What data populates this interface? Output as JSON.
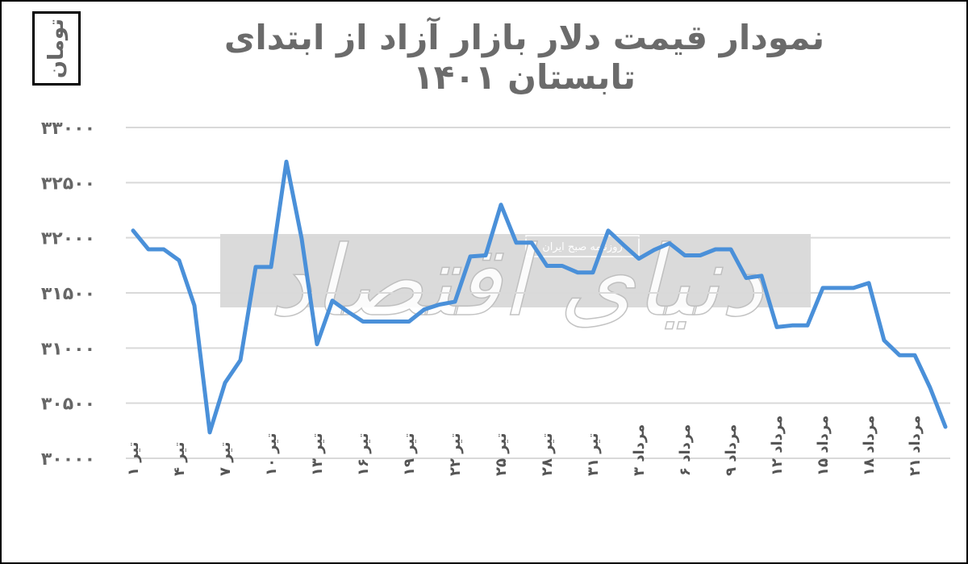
{
  "chart_data": {
    "type": "line",
    "title": "نمودار قیمت دلار بازار آزاد از ابتدای تابستان ۱۴۰۱",
    "unit_label": "تومان",
    "xlabel": "",
    "ylabel": "تومان",
    "ylim": [
      30000,
      33000
    ],
    "yticks": [
      30000,
      30500,
      31000,
      31500,
      32000,
      32500,
      33000
    ],
    "ytick_labels": [
      "۳۰۰۰۰",
      "۳۰۵۰۰",
      "۳۱۰۰۰",
      "۳۱۵۰۰",
      "۳۲۰۰۰",
      "۳۲۵۰۰",
      "۳۳۰۰۰"
    ],
    "grid": true,
    "legend": "none",
    "line_color": "#4a90d9",
    "xtick_labels": [
      "تیر ۱",
      "تیر ۴",
      "تیر ۷",
      "تیر ۱۰",
      "تیر ۱۳",
      "تیر ۱۶",
      "تیر ۱۹",
      "تیر ۲۲",
      "تیر ۲۵",
      "تیر ۲۸",
      "تیر ۳۱",
      "مرداد ۳",
      "مرداد ۶",
      "مرداد ۹",
      "مرداد ۱۲",
      "مرداد ۱۵",
      "مرداد ۱۸",
      "مرداد ۲۱"
    ],
    "xtick_every": 3,
    "series": [
      {
        "name": "قیمت دلار بازار آزاد",
        "values": [
          32065,
          31895,
          31895,
          31795,
          31385,
          30235,
          30685,
          30890,
          31735,
          31735,
          32690,
          31990,
          31035,
          31430,
          31330,
          31240,
          31240,
          31240,
          31240,
          31350,
          31395,
          31420,
          31830,
          31840,
          32300,
          31955,
          31955,
          31745,
          31745,
          31685,
          31685,
          32065,
          31935,
          31810,
          31890,
          31950,
          31840,
          31840,
          31895,
          31895,
          31635,
          31655,
          31190,
          31205,
          31205,
          31545,
          31545,
          31545,
          31590,
          31070,
          30935,
          30935,
          30640,
          30285
        ]
      }
    ]
  },
  "watermark": {
    "main": "دنیای اقتصاد",
    "sub": "روزنامه صبح ایران"
  }
}
